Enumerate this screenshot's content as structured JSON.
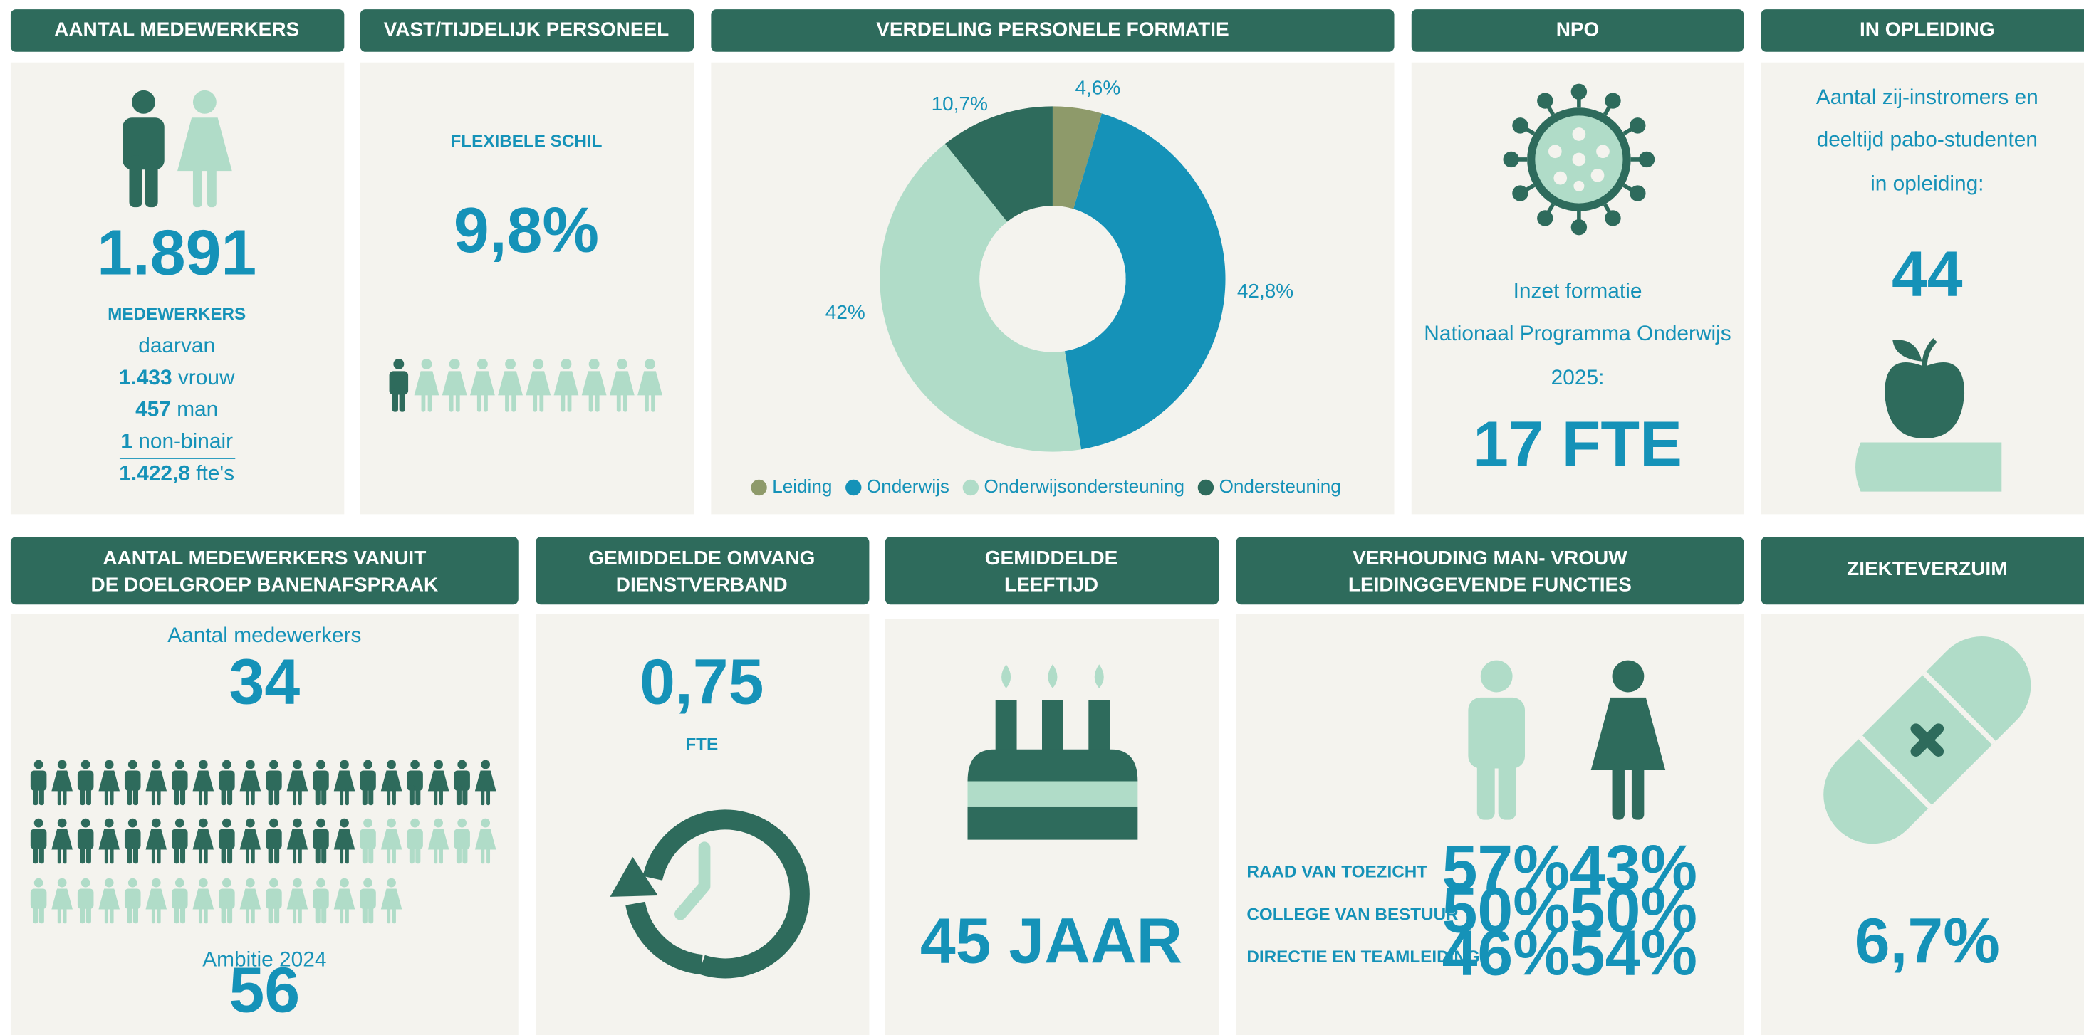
{
  "headcount": {
    "title": "AANTAL MEDEWERKERS",
    "total": "1.891",
    "total_label": "MEDEWERKERS",
    "daarvan": "daarvan",
    "lines": [
      {
        "value": "1.433",
        "label": "vrouw"
      },
      {
        "value": "457",
        "label": "man"
      },
      {
        "value": "1",
        "label": "non-binair"
      },
      {
        "value": "1.422,8",
        "label": "fte's"
      }
    ]
  },
  "contract": {
    "title": "VAST/TIJDELIJK PERSONEEL",
    "label": "FLEXIBELE SCHIL",
    "value": "9,8%"
  },
  "chart_data": {
    "type": "pie",
    "donut": true,
    "title": "VERDELING PERSONELE FORMATIE",
    "categories": [
      "Leiding",
      "Onderwijs",
      "Onderwijsondersteuning",
      "Ondersteuning"
    ],
    "values": [
      4.6,
      42.8,
      42,
      10.7
    ],
    "value_labels": [
      "4,6%",
      "42,8%",
      "42%",
      "10,7%"
    ],
    "colors": [
      "#8e9a6a",
      "#1592b8",
      "#b0dcc8",
      "#2e6b5c"
    ],
    "legend": "bottom"
  },
  "npo": {
    "title": "NPO",
    "lines": [
      "Inzet formatie",
      "Nationaal Programma Onderwijs",
      "2025:"
    ],
    "value": "17 FTE"
  },
  "training": {
    "title": "IN OPLEIDING",
    "lines": [
      "Aantal zij-instromers en",
      "deeltijd pabo-studenten",
      "in opleiding:"
    ],
    "value": "44"
  },
  "banenafspraak": {
    "title_lines": [
      "AANTAL MEDEWERKERS VANUIT",
      "DE DOELGROEP BANENAFSPRAAK"
    ],
    "label": "Aantal medewerkers",
    "value": 34,
    "ambition_label": "Ambitie 2024",
    "ambition": 56
  },
  "omvang": {
    "title_lines": [
      "GEMIDDELDE OMVANG",
      "DIENSTVERBAND"
    ],
    "value": "0,75",
    "unit": "FTE"
  },
  "leeftijd": {
    "title_lines": [
      "GEMIDDELDE",
      "LEEFTIJD"
    ],
    "value": "45 JAAR"
  },
  "leadership": {
    "title_lines": [
      "VERHOUDING  MAN- VROUW",
      "LEIDINGGEVENDE FUNCTIES"
    ],
    "rows": [
      {
        "label": "RAAD VAN TOEZICHT",
        "man": "57%",
        "vrouw": "43%"
      },
      {
        "label": "COLLEGE VAN BESTUUR",
        "man": "50%",
        "vrouw": "50%"
      },
      {
        "label": "DIRECTIE EN TEAMLEIDING",
        "man": "46%",
        "vrouw": "54%"
      }
    ]
  },
  "verzuim": {
    "title": "ZIEKTEVERZUIM",
    "value": "6,7%"
  }
}
